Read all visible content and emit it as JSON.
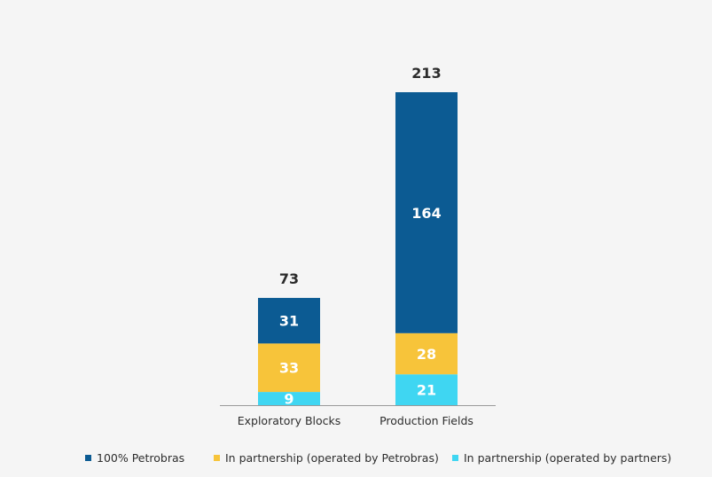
{
  "chart_data": {
    "type": "stacked-bar",
    "categories": [
      "Exploratory Blocks",
      "Production Fields"
    ],
    "totals": [
      73,
      213
    ],
    "series": [
      {
        "name": "In partnership (operated by partners)",
        "color": "#3fd6f2",
        "values": [
          9,
          21
        ]
      },
      {
        "name": "In partnership (operated by Petrobras)",
        "color": "#f7c43a",
        "values": [
          33,
          28
        ]
      },
      {
        "name": "100% Petrobras",
        "color": "#0c5b93",
        "values": [
          31,
          164
        ]
      }
    ],
    "ylim": [
      0,
      213
    ],
    "legend_order": [
      2,
      1,
      0
    ],
    "label_color": "#ffffff",
    "total_label_color": "#2b2b2b",
    "axis_color": "#9a9a9a"
  }
}
